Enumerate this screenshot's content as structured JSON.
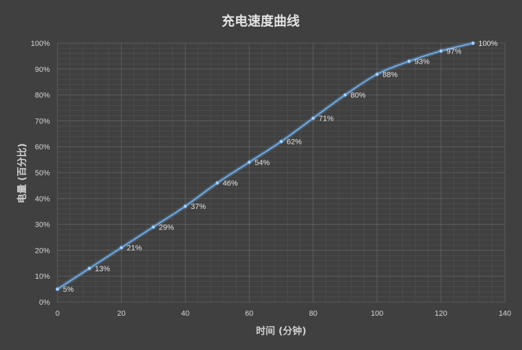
{
  "chart_data": {
    "type": "scatter",
    "title": "充电速度曲线",
    "xlabel": "时间 (分钟)",
    "ylabel": "电量 (百分比)",
    "xlim": [
      0,
      140
    ],
    "ylim": [
      0,
      1
    ],
    "x_ticks": [
      "0",
      "20",
      "40",
      "60",
      "80",
      "100",
      "120",
      "140"
    ],
    "y_ticks": [
      "0%",
      "10%",
      "20%",
      "30%",
      "40%",
      "50%",
      "60%",
      "70%",
      "80%",
      "90%",
      "100%"
    ],
    "x": [
      0,
      10,
      20,
      30,
      40,
      50,
      60,
      70,
      80,
      90,
      100,
      110,
      120,
      130
    ],
    "y": [
      0.05,
      0.13,
      0.21,
      0.29,
      0.37,
      0.46,
      0.54,
      0.62,
      0.71,
      0.8,
      0.88,
      0.93,
      0.97,
      1.0
    ],
    "data_labels": [
      "5%",
      "13%",
      "21%",
      "29%",
      "37%",
      "46%",
      "54%",
      "62%",
      "71%",
      "80%",
      "88%",
      "93%",
      "97%",
      "100%"
    ],
    "smooth": true,
    "grid": true,
    "legend": "none",
    "colors": {
      "background": "#404040",
      "series": "#5b9bd5"
    }
  }
}
